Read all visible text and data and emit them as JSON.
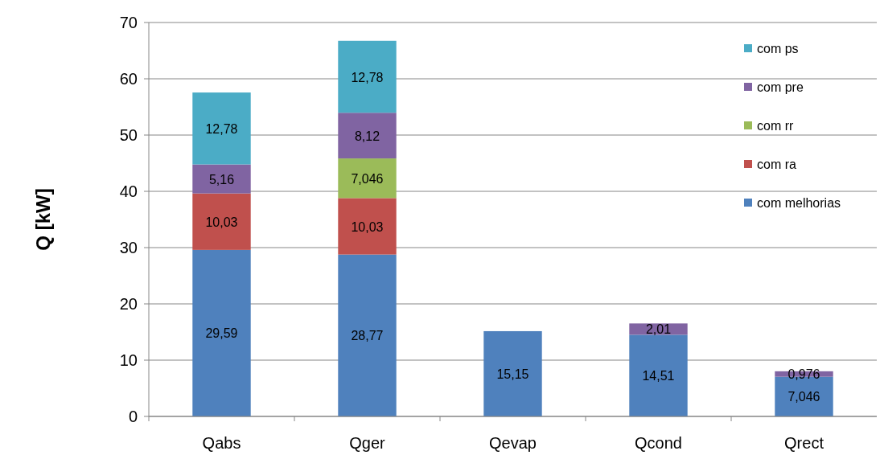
{
  "chart_data": {
    "type": "bar",
    "stacked": true,
    "categories": [
      "Qabs",
      "Qger",
      "Qevap",
      "Qcond",
      "Qrect"
    ],
    "ylabel": "Q [kW]",
    "ylim": [
      0,
      70
    ],
    "yticks": [
      0,
      10,
      20,
      30,
      40,
      50,
      60,
      70
    ],
    "grid": "y",
    "legend": "top right",
    "series": [
      {
        "name": "com melhorias",
        "color": "#4f81bd",
        "values": [
          29.59,
          28.77,
          15.15,
          14.51,
          7.046
        ],
        "value_labels": [
          "29,59",
          "28,77",
          "15,15",
          "14,51",
          "7,046"
        ]
      },
      {
        "name": "com ra",
        "color": "#c0504d",
        "values": [
          10.03,
          10.03,
          null,
          null,
          null
        ],
        "value_labels": [
          "10,03",
          "10,03",
          null,
          null,
          null
        ]
      },
      {
        "name": "com rr",
        "color": "#9bbb59",
        "values": [
          null,
          7.046,
          null,
          null,
          null
        ],
        "value_labels": [
          null,
          "7,046",
          null,
          null,
          null
        ]
      },
      {
        "name": "com pre",
        "color": "#8064a2",
        "values": [
          5.16,
          8.12,
          null,
          2.01,
          0.976
        ],
        "value_labels": [
          "5,16",
          "8,12",
          null,
          "2,01",
          "0,976"
        ]
      },
      {
        "name": "com ps",
        "color": "#4bacc6",
        "values": [
          12.78,
          12.78,
          null,
          null,
          null
        ],
        "value_labels": [
          "12,78",
          "12,78",
          null,
          null,
          null
        ]
      }
    ]
  }
}
